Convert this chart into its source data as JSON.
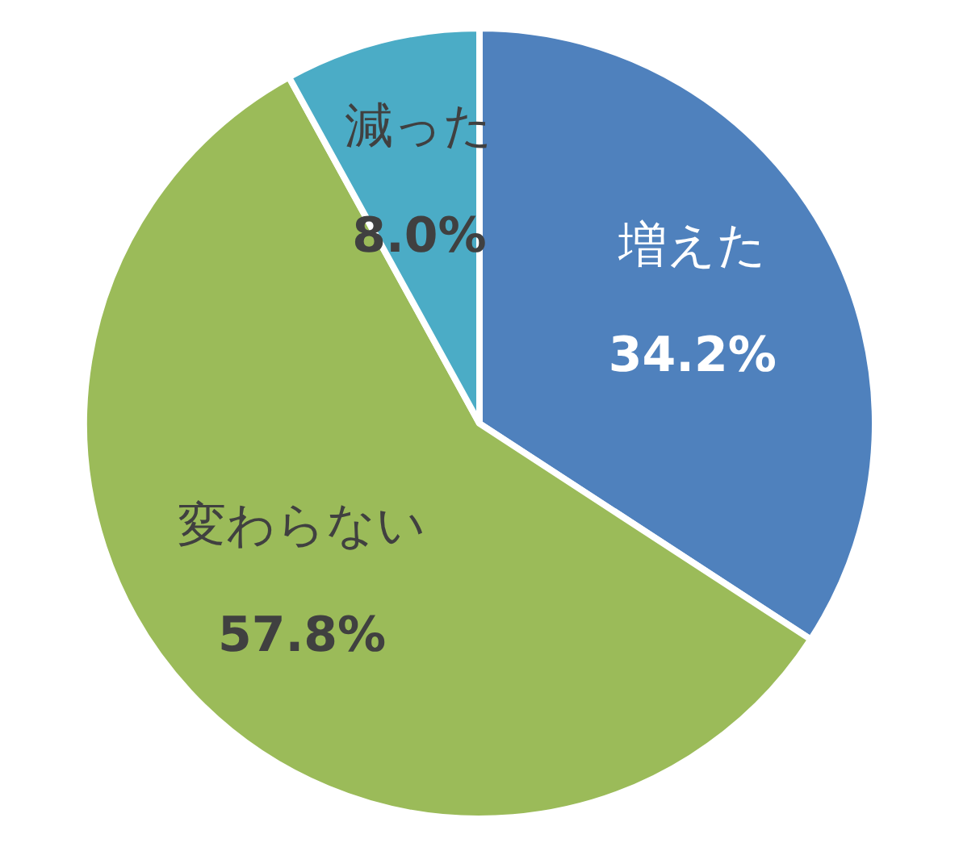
{
  "chart_data": {
    "type": "pie",
    "categories": [
      "増えた",
      "変わらない",
      "減った"
    ],
    "values": [
      34.2,
      57.8,
      8.0
    ],
    "colors": [
      "#4f81bd",
      "#9bbb59",
      "#4bacc6"
    ],
    "value_labels": [
      "34.2%",
      "57.8%",
      "8.0%"
    ],
    "legend": false
  }
}
